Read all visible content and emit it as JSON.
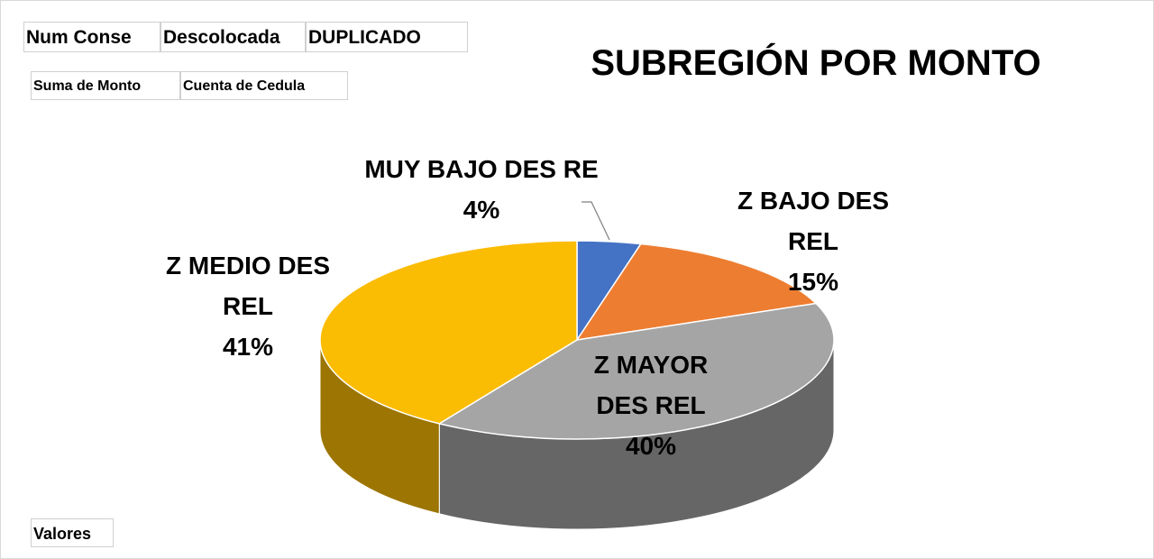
{
  "chart_data": {
    "type": "pie",
    "title": "SUBREGIÓN POR MONTO",
    "categories": [
      "MUY BAJO DES RE",
      "Z BAJO DES REL",
      "Z MAYOR DES REL",
      "Z MEDIO DES REL"
    ],
    "values": [
      4,
      15,
      40,
      41
    ],
    "value_labels": [
      "4%",
      "15%",
      "40%",
      "41%"
    ],
    "colors": [
      "#4472c4",
      "#ed7d31",
      "#a5a5a5",
      "#fbbc04"
    ],
    "filter_buttons": [
      "Num Conse",
      "Descolocada",
      "DUPLICADO"
    ],
    "value_buttons": [
      "Suma de Monto",
      "Cuenta de Cedula"
    ],
    "axis_button": "Valores"
  }
}
